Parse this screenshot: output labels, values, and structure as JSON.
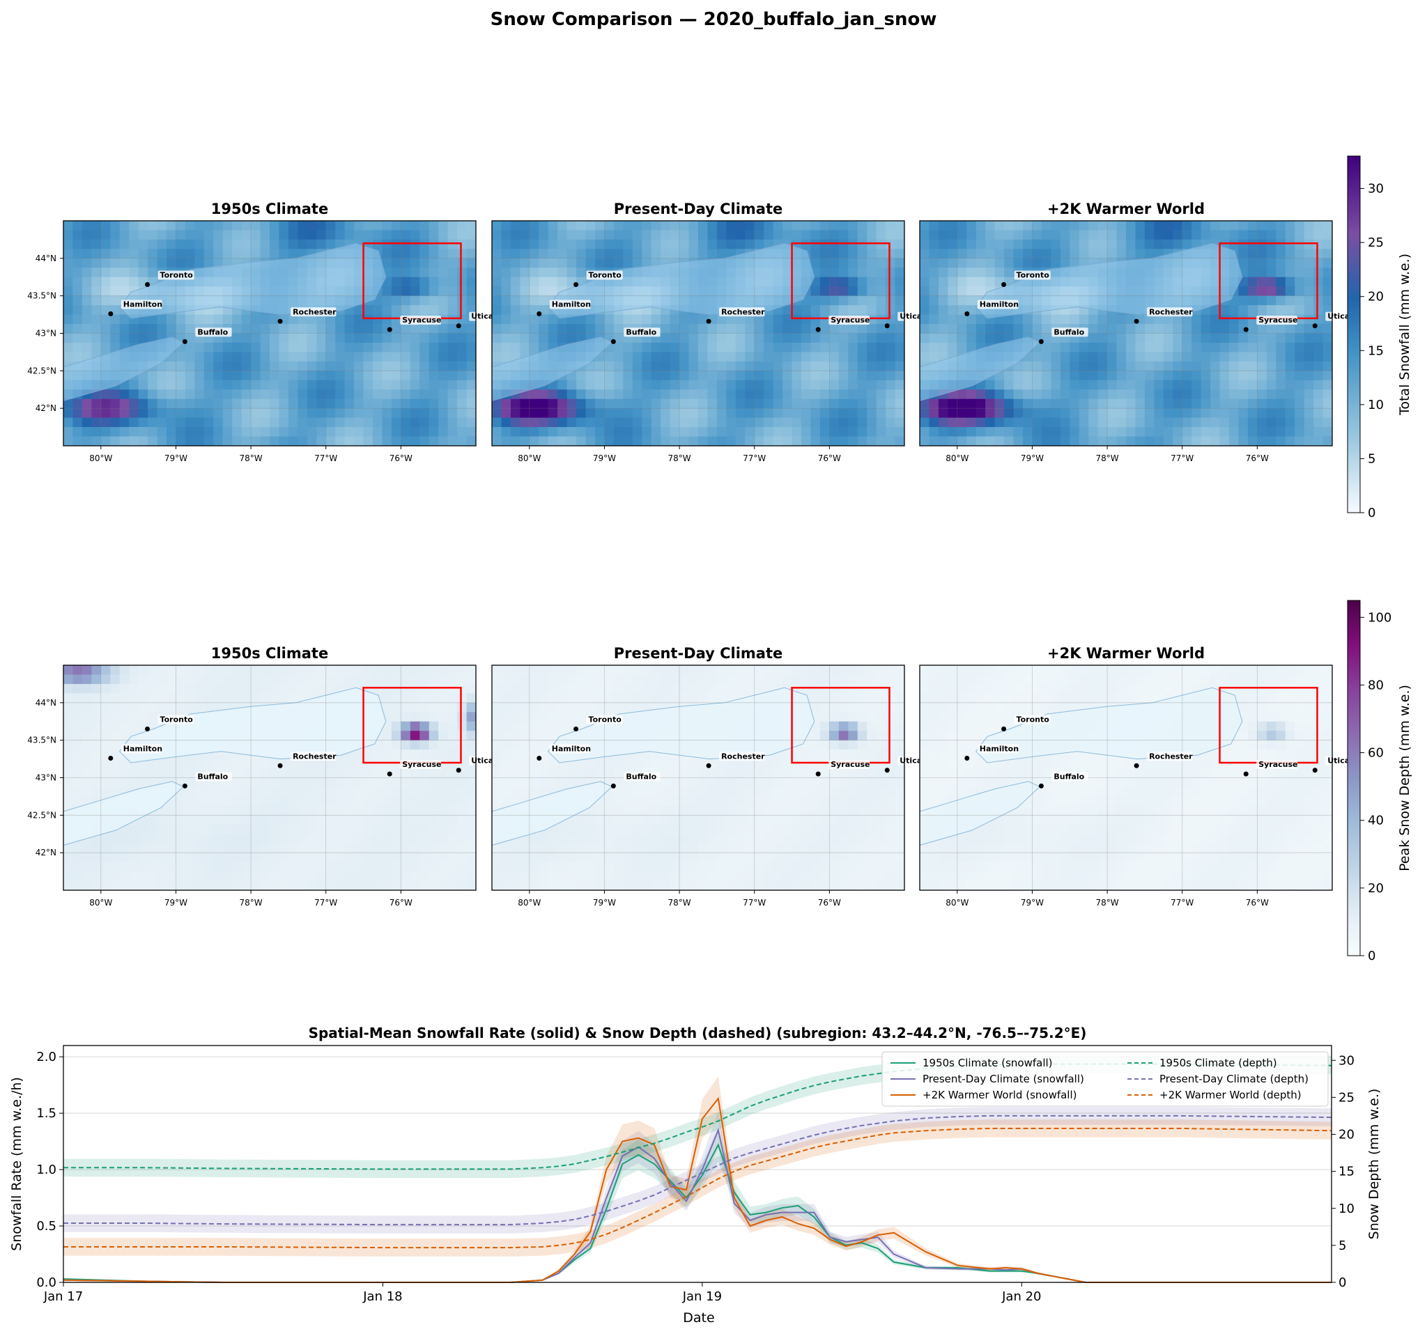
{
  "figure": {
    "suptitle": "Snow Comparison — 2020_buffalo_jan_snow"
  },
  "maps": {
    "panel_titles": [
      "1950s Climate",
      "Present-Day Climate",
      "+2K Warmer World"
    ],
    "lon_ticks": [
      "80°W",
      "79°W",
      "78°W",
      "77°W",
      "76°W"
    ],
    "lat_ticks": [
      "44°N",
      "43.5°N",
      "43°N",
      "42.5°N",
      "42°N"
    ],
    "extent": {
      "lon": [
        -80.5,
        -75.0
      ],
      "lat": [
        41.5,
        44.5
      ]
    },
    "subregion_box": {
      "lon": [
        -76.5,
        -75.2
      ],
      "lat": [
        43.2,
        44.2
      ]
    },
    "cities": [
      {
        "name": "Toronto",
        "lon": -79.38,
        "lat": 43.65
      },
      {
        "name": "Hamilton",
        "lon": -79.87,
        "lat": 43.26
      },
      {
        "name": "Buffalo",
        "lon": -78.88,
        "lat": 42.89
      },
      {
        "name": "Rochester",
        "lon": -77.61,
        "lat": 43.16
      },
      {
        "name": "Syracuse",
        "lon": -76.15,
        "lat": 43.05
      },
      {
        "name": "Utica",
        "lon": -75.23,
        "lat": 43.1
      }
    ],
    "rows": [
      {
        "field": "Total Snowfall",
        "colorbar_label": "Total Snowfall (mm w.e.)",
        "colorbar_ticks": [
          0,
          5,
          10,
          15,
          20,
          25,
          30
        ],
        "vmax": 33,
        "colormap": "BuPu",
        "background_level": [
          12,
          12,
          12
        ],
        "max_in_box": [
          22,
          26,
          30
        ],
        "southwest_max": [
          25,
          32,
          33
        ]
      },
      {
        "field": "Peak Snow Depth",
        "colorbar_label": "Peak Snow Depth (mm w.e.)",
        "colorbar_ticks": [
          0,
          20,
          40,
          60,
          80,
          100
        ],
        "vmax": 105,
        "colormap": "BuPu",
        "background_level": [
          10,
          8,
          6
        ],
        "max_in_box": [
          100,
          70,
          35
        ]
      }
    ]
  },
  "chart_data": {
    "type": "line",
    "title": "Spatial-Mean Snowfall Rate (solid) & Snow Depth (dashed) (subregion: 43.2–44.2°N, -76.5–-75.2°E)",
    "xlabel": "Date",
    "ylabel_left": "Snowfall Rate (mm w.e./h)",
    "ylabel_right": "Snow Depth (mm w.e.)",
    "x_unit": "days since Jan 17 00:00",
    "xlim": [
      0,
      3.97
    ],
    "x_ticks": [
      "Jan 17",
      "Jan 18",
      "Jan 19",
      "Jan 20"
    ],
    "ylim_left": [
      0,
      2.1
    ],
    "yticks_left": [
      0.0,
      0.5,
      1.0,
      1.5,
      2.0
    ],
    "ylim_right": [
      0,
      32
    ],
    "yticks_right": [
      0,
      5,
      10,
      15,
      20,
      25,
      30
    ],
    "grid": true,
    "legend_position": "upper right",
    "x": [
      0,
      0.25,
      0.5,
      1.0,
      1.4,
      1.5,
      1.55,
      1.6,
      1.65,
      1.7,
      1.75,
      1.8,
      1.85,
      1.9,
      1.95,
      2.0,
      2.05,
      2.1,
      2.15,
      2.2,
      2.25,
      2.3,
      2.35,
      2.4,
      2.45,
      2.5,
      2.55,
      2.6,
      2.7,
      2.8,
      2.9,
      2.95,
      3.0,
      3.05,
      3.2,
      3.5,
      3.97
    ],
    "series": [
      {
        "name": "1950s Climate (snowfall)",
        "axis": "left",
        "style": "solid",
        "color": "#1b9e77",
        "values": [
          0.03,
          0.01,
          0.0,
          0.0,
          0.0,
          0.02,
          0.08,
          0.2,
          0.3,
          0.65,
          1.05,
          1.13,
          1.05,
          0.9,
          0.75,
          0.95,
          1.22,
          0.8,
          0.6,
          0.62,
          0.66,
          0.68,
          0.58,
          0.4,
          0.33,
          0.35,
          0.3,
          0.18,
          0.13,
          0.13,
          0.1,
          0.1,
          0.1,
          0.08,
          0.0,
          0.0,
          0.0
        ]
      },
      {
        "name": "Present-Day Climate (snowfall)",
        "axis": "left",
        "style": "solid",
        "color": "#7570b3",
        "values": [
          0.02,
          0.01,
          0.0,
          0.0,
          0.0,
          0.02,
          0.08,
          0.22,
          0.35,
          0.75,
          1.12,
          1.2,
          1.1,
          0.88,
          0.72,
          1.0,
          1.35,
          0.7,
          0.55,
          0.6,
          0.62,
          0.62,
          0.62,
          0.4,
          0.36,
          0.38,
          0.4,
          0.25,
          0.13,
          0.12,
          0.12,
          0.11,
          0.12,
          0.08,
          0.0,
          0.0,
          0.0
        ]
      },
      {
        "name": "+2K Warmer World (snowfall)",
        "axis": "left",
        "style": "solid",
        "color": "#d95f02",
        "values": [
          0.02,
          0.01,
          0.0,
          0.0,
          0.0,
          0.02,
          0.1,
          0.25,
          0.45,
          1.0,
          1.25,
          1.28,
          1.22,
          0.85,
          0.82,
          1.45,
          1.63,
          0.75,
          0.5,
          0.55,
          0.58,
          0.52,
          0.48,
          0.38,
          0.32,
          0.36,
          0.42,
          0.44,
          0.27,
          0.15,
          0.12,
          0.13,
          0.12,
          0.08,
          0.0,
          0.0,
          0.0
        ]
      },
      {
        "name": "1950s Climate (depth)",
        "axis": "right",
        "style": "dashed",
        "color": "#1b9e77",
        "values": [
          15.5,
          15.5,
          15.4,
          15.3,
          15.3,
          15.5,
          15.7,
          16.0,
          16.5,
          17.0,
          17.6,
          18.2,
          18.8,
          19.5,
          20.3,
          21.0,
          21.8,
          22.8,
          23.8,
          24.6,
          25.3,
          26.0,
          26.6,
          27.1,
          27.5,
          27.9,
          28.2,
          28.5,
          28.9,
          29.2,
          29.4,
          29.5,
          29.5,
          29.5,
          29.5,
          29.5,
          29.3
        ]
      },
      {
        "name": "Present-Day Climate (depth)",
        "axis": "right",
        "style": "dashed",
        "color": "#7570b3",
        "values": [
          8.0,
          8.0,
          7.9,
          7.8,
          7.8,
          8.0,
          8.2,
          8.5,
          9.0,
          9.6,
          10.3,
          11.0,
          11.8,
          12.8,
          13.8,
          14.8,
          15.8,
          16.8,
          17.5,
          18.1,
          18.7,
          19.3,
          19.9,
          20.4,
          20.8,
          21.2,
          21.5,
          21.8,
          22.2,
          22.4,
          22.5,
          22.5,
          22.5,
          22.5,
          22.5,
          22.5,
          22.3
        ]
      },
      {
        "name": "+2K Warmer World (depth)",
        "axis": "right",
        "style": "dashed",
        "color": "#d95f02",
        "values": [
          4.8,
          4.8,
          4.8,
          4.7,
          4.7,
          4.8,
          5.0,
          5.3,
          5.8,
          6.5,
          7.4,
          8.4,
          9.4,
          10.5,
          11.6,
          12.8,
          14.0,
          15.0,
          15.8,
          16.4,
          17.0,
          17.6,
          18.2,
          18.7,
          19.1,
          19.5,
          19.9,
          20.2,
          20.5,
          20.7,
          20.8,
          20.8,
          20.8,
          20.8,
          20.8,
          20.8,
          20.5
        ]
      }
    ]
  }
}
